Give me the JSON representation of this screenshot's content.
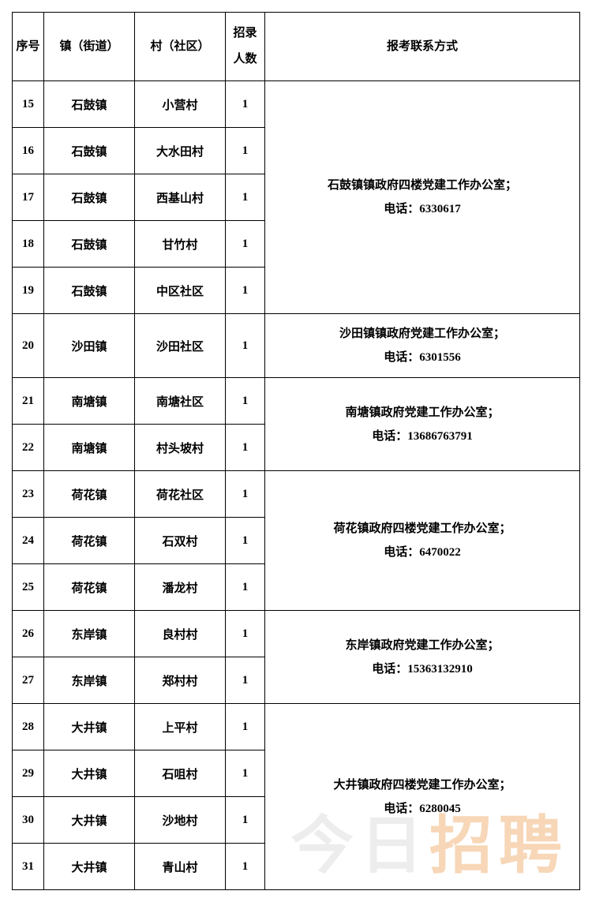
{
  "headers": {
    "seq": "序号",
    "town": "镇（街道）",
    "village": "村（社区）",
    "count": "招录人数",
    "contact": "报考联系方式"
  },
  "groups": [
    {
      "contact_line1": "石鼓镇镇政府四楼党建工作办公室；",
      "contact_line2": "电话：6330617",
      "rows": [
        {
          "seq": "15",
          "town": "石鼓镇",
          "village": "小营村",
          "count": "1"
        },
        {
          "seq": "16",
          "town": "石鼓镇",
          "village": "大水田村",
          "count": "1"
        },
        {
          "seq": "17",
          "town": "石鼓镇",
          "village": "西基山村",
          "count": "1"
        },
        {
          "seq": "18",
          "town": "石鼓镇",
          "village": "甘竹村",
          "count": "1"
        },
        {
          "seq": "19",
          "town": "石鼓镇",
          "village": "中区社区",
          "count": "1"
        }
      ]
    },
    {
      "contact_line1": "沙田镇镇政府党建工作办公室；",
      "contact_line2": "电话：6301556",
      "rows": [
        {
          "seq": "20",
          "town": "沙田镇",
          "village": "沙田社区",
          "count": "1"
        }
      ]
    },
    {
      "contact_line1": "南塘镇政府党建工作办公室；",
      "contact_line2": "电话：13686763791",
      "rows": [
        {
          "seq": "21",
          "town": "南塘镇",
          "village": "南塘社区",
          "count": "1"
        },
        {
          "seq": "22",
          "town": "南塘镇",
          "village": "村头坡村",
          "count": "1"
        }
      ]
    },
    {
      "contact_line1": "荷花镇政府四楼党建工作办公室；",
      "contact_line2": "电话：6470022",
      "rows": [
        {
          "seq": "23",
          "town": "荷花镇",
          "village": "荷花社区",
          "count": "1"
        },
        {
          "seq": "24",
          "town": "荷花镇",
          "village": "石双村",
          "count": "1"
        },
        {
          "seq": "25",
          "town": "荷花镇",
          "village": "潘龙村",
          "count": "1"
        }
      ]
    },
    {
      "contact_line1": "东岸镇政府党建工作办公室；",
      "contact_line2": "电话：15363132910",
      "rows": [
        {
          "seq": "26",
          "town": "东岸镇",
          "village": "良村村",
          "count": "1"
        },
        {
          "seq": "27",
          "town": "东岸镇",
          "village": "郑村村",
          "count": "1"
        }
      ]
    },
    {
      "contact_line1": "大井镇政府四楼党建工作办公室；",
      "contact_line2": "电话：6280045",
      "rows": [
        {
          "seq": "28",
          "town": "大井镇",
          "village": "上平村",
          "count": "1"
        },
        {
          "seq": "29",
          "town": "大井镇",
          "village": "石咀村",
          "count": "1"
        },
        {
          "seq": "30",
          "town": "大井镇",
          "village": "沙地村",
          "count": "1"
        },
        {
          "seq": "31",
          "town": "大井镇",
          "village": "青山村",
          "count": "1"
        }
      ]
    }
  ],
  "watermark": {
    "part1": "今日",
    "part2": "招聘"
  }
}
